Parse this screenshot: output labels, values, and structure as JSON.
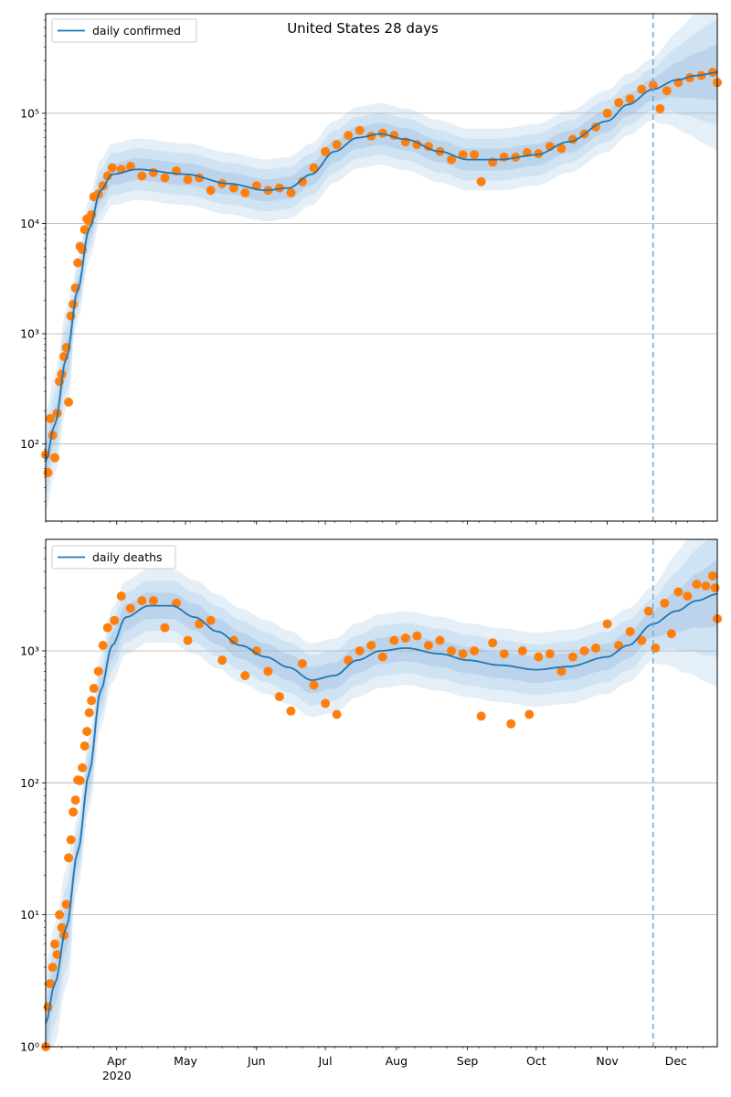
{
  "chart_data": [
    {
      "type": "line",
      "title": "United States 28 days",
      "xlabel": "",
      "ylabel": "",
      "yscale": "log",
      "ylim": [
        20,
        800000
      ],
      "xlim": [
        "2020-03-01",
        "2020-12-19"
      ],
      "x_tick_labels": [
        {
          "date": "2020-04-01",
          "label": "",
          "sublabel": ""
        },
        {
          "date": "2020-05-01",
          "label": "",
          "sublabel": ""
        },
        {
          "date": "2020-06-01",
          "label": "",
          "sublabel": ""
        },
        {
          "date": "2020-07-01",
          "label": "",
          "sublabel": ""
        },
        {
          "date": "2020-08-01",
          "label": "",
          "sublabel": ""
        },
        {
          "date": "2020-09-01",
          "label": "",
          "sublabel": ""
        },
        {
          "date": "2020-10-01",
          "label": "",
          "sublabel": ""
        },
        {
          "date": "2020-11-01",
          "label": "",
          "sublabel": ""
        },
        {
          "date": "2020-12-01",
          "label": "",
          "sublabel": ""
        }
      ],
      "y_tick_labels": [
        {
          "value": 100,
          "label": "10²"
        },
        {
          "value": 1000,
          "label": "10³"
        },
        {
          "value": 10000,
          "label": "10⁴"
        },
        {
          "value": 100000,
          "label": "10⁵"
        }
      ],
      "grid": "horizontal major",
      "legend": {
        "placement": "top-left",
        "entries": [
          "daily confirmed"
        ]
      },
      "forecast_start_line": "2020-11-21",
      "model_curve": {
        "name": "daily confirmed",
        "color": "#1f77b4",
        "knots": [
          [
            "2020-03-01",
            70
          ],
          [
            "2020-03-05",
            150
          ],
          [
            "2020-03-10",
            600
          ],
          [
            "2020-03-15",
            2500
          ],
          [
            "2020-03-20",
            9000
          ],
          [
            "2020-03-25",
            20000
          ],
          [
            "2020-03-30",
            28000
          ],
          [
            "2020-04-10",
            31000
          ],
          [
            "2020-05-01",
            28000
          ],
          [
            "2020-05-20",
            23000
          ],
          [
            "2020-06-05",
            20000
          ],
          [
            "2020-06-15",
            21000
          ],
          [
            "2020-06-25",
            28000
          ],
          [
            "2020-07-05",
            45000
          ],
          [
            "2020-07-15",
            60000
          ],
          [
            "2020-07-25",
            65000
          ],
          [
            "2020-08-05",
            58000
          ],
          [
            "2020-08-20",
            45000
          ],
          [
            "2020-09-01",
            38000
          ],
          [
            "2020-09-15",
            38000
          ],
          [
            "2020-10-01",
            42000
          ],
          [
            "2020-10-15",
            55000
          ],
          [
            "2020-11-01",
            85000
          ],
          [
            "2020-11-10",
            120000
          ],
          [
            "2020-11-21",
            165000
          ],
          [
            "2020-12-01",
            200000
          ],
          [
            "2020-12-10",
            220000
          ],
          [
            "2020-12-19",
            235000
          ]
        ]
      },
      "observed_series": {
        "name": "observed daily confirmed",
        "color": "#ff7f0e",
        "points": [
          [
            "2020-03-01",
            80
          ],
          [
            "2020-03-02",
            55
          ],
          [
            "2020-03-03",
            170
          ],
          [
            "2020-03-04",
            120
          ],
          [
            "2020-03-05",
            75
          ],
          [
            "2020-03-06",
            190
          ],
          [
            "2020-03-07",
            370
          ],
          [
            "2020-03-08",
            430
          ],
          [
            "2020-03-09",
            620
          ],
          [
            "2020-03-10",
            750
          ],
          [
            "2020-03-11",
            240
          ],
          [
            "2020-03-12",
            1450
          ],
          [
            "2020-03-13",
            1850
          ],
          [
            "2020-03-14",
            2600
          ],
          [
            "2020-03-15",
            4400
          ],
          [
            "2020-03-16",
            6200
          ],
          [
            "2020-03-17",
            5800
          ],
          [
            "2020-03-18",
            8800
          ],
          [
            "2020-03-19",
            11000
          ],
          [
            "2020-03-20",
            10500
          ],
          [
            "2020-03-21",
            12000
          ],
          [
            "2020-03-22",
            17500
          ],
          [
            "2020-03-24",
            18500
          ],
          [
            "2020-03-26",
            22000
          ],
          [
            "2020-03-28",
            27000
          ],
          [
            "2020-03-30",
            32000
          ],
          [
            "2020-04-03",
            31000
          ],
          [
            "2020-04-07",
            33000
          ],
          [
            "2020-04-12",
            27000
          ],
          [
            "2020-04-17",
            29000
          ],
          [
            "2020-04-22",
            26000
          ],
          [
            "2020-04-27",
            30000
          ],
          [
            "2020-05-02",
            25000
          ],
          [
            "2020-05-07",
            26000
          ],
          [
            "2020-05-12",
            20000
          ],
          [
            "2020-05-17",
            23000
          ],
          [
            "2020-05-22",
            21000
          ],
          [
            "2020-05-27",
            19000
          ],
          [
            "2020-06-01",
            22000
          ],
          [
            "2020-06-06",
            20000
          ],
          [
            "2020-06-11",
            21000
          ],
          [
            "2020-06-16",
            19000
          ],
          [
            "2020-06-21",
            24000
          ],
          [
            "2020-06-26",
            32000
          ],
          [
            "2020-07-01",
            45000
          ],
          [
            "2020-07-06",
            52000
          ],
          [
            "2020-07-11",
            63000
          ],
          [
            "2020-07-16",
            70000
          ],
          [
            "2020-07-21",
            62000
          ],
          [
            "2020-07-26",
            66000
          ],
          [
            "2020-07-31",
            63000
          ],
          [
            "2020-08-05",
            55000
          ],
          [
            "2020-08-10",
            52000
          ],
          [
            "2020-08-15",
            50000
          ],
          [
            "2020-08-20",
            45000
          ],
          [
            "2020-08-25",
            38000
          ],
          [
            "2020-08-30",
            42000
          ],
          [
            "2020-09-04",
            42000
          ],
          [
            "2020-09-07",
            24000
          ],
          [
            "2020-09-12",
            36000
          ],
          [
            "2020-09-17",
            40000
          ],
          [
            "2020-09-22",
            40000
          ],
          [
            "2020-09-27",
            44000
          ],
          [
            "2020-10-02",
            43000
          ],
          [
            "2020-10-07",
            50000
          ],
          [
            "2020-10-12",
            48000
          ],
          [
            "2020-10-17",
            58000
          ],
          [
            "2020-10-22",
            65000
          ],
          [
            "2020-10-27",
            75000
          ],
          [
            "2020-11-01",
            100000
          ],
          [
            "2020-11-06",
            125000
          ],
          [
            "2020-11-11",
            135000
          ],
          [
            "2020-11-16",
            165000
          ],
          [
            "2020-11-21",
            180000
          ],
          [
            "2020-11-24",
            110000
          ],
          [
            "2020-11-27",
            160000
          ],
          [
            "2020-12-02",
            190000
          ],
          [
            "2020-12-07",
            210000
          ],
          [
            "2020-12-12",
            220000
          ],
          [
            "2020-12-17",
            235000
          ],
          [
            "2020-12-19",
            190000
          ]
        ]
      }
    },
    {
      "type": "line",
      "title": "",
      "xlabel": "",
      "ylabel": "",
      "yscale": "log",
      "ylim": [
        1,
        7000
      ],
      "xlim": [
        "2020-03-01",
        "2020-12-19"
      ],
      "x_tick_labels": [
        {
          "date": "2020-04-01",
          "label": "Apr",
          "sublabel": "2020"
        },
        {
          "date": "2020-05-01",
          "label": "May",
          "sublabel": ""
        },
        {
          "date": "2020-06-01",
          "label": "Jun",
          "sublabel": ""
        },
        {
          "date": "2020-07-01",
          "label": "Jul",
          "sublabel": ""
        },
        {
          "date": "2020-08-01",
          "label": "Aug",
          "sublabel": ""
        },
        {
          "date": "2020-09-01",
          "label": "Sep",
          "sublabel": ""
        },
        {
          "date": "2020-10-01",
          "label": "Oct",
          "sublabel": ""
        },
        {
          "date": "2020-11-01",
          "label": "Nov",
          "sublabel": ""
        },
        {
          "date": "2020-12-01",
          "label": "Dec",
          "sublabel": ""
        }
      ],
      "y_tick_labels": [
        {
          "value": 1,
          "label": "10⁰"
        },
        {
          "value": 10,
          "label": "10¹"
        },
        {
          "value": 100,
          "label": "10²"
        },
        {
          "value": 1000,
          "label": "10³"
        }
      ],
      "grid": "horizontal major",
      "legend": {
        "placement": "top-left",
        "entries": [
          "daily deaths"
        ]
      },
      "forecast_start_line": "2020-11-21",
      "model_curve": {
        "name": "daily deaths",
        "color": "#1f77b4",
        "knots": [
          [
            "2020-03-01",
            1.5
          ],
          [
            "2020-03-05",
            3
          ],
          [
            "2020-03-10",
            8
          ],
          [
            "2020-03-15",
            30
          ],
          [
            "2020-03-20",
            120
          ],
          [
            "2020-03-25",
            500
          ],
          [
            "2020-03-30",
            1100
          ],
          [
            "2020-04-05",
            1800
          ],
          [
            "2020-04-15",
            2200
          ],
          [
            "2020-04-25",
            2200
          ],
          [
            "2020-05-05",
            1800
          ],
          [
            "2020-05-15",
            1400
          ],
          [
            "2020-05-25",
            1100
          ],
          [
            "2020-06-05",
            900
          ],
          [
            "2020-06-15",
            750
          ],
          [
            "2020-06-25",
            600
          ],
          [
            "2020-07-05",
            650
          ],
          [
            "2020-07-15",
            850
          ],
          [
            "2020-07-25",
            1000
          ],
          [
            "2020-08-05",
            1050
          ],
          [
            "2020-08-20",
            950
          ],
          [
            "2020-09-01",
            850
          ],
          [
            "2020-09-15",
            780
          ],
          [
            "2020-10-01",
            720
          ],
          [
            "2020-10-15",
            760
          ],
          [
            "2020-11-01",
            900
          ],
          [
            "2020-11-10",
            1100
          ],
          [
            "2020-11-21",
            1600
          ],
          [
            "2020-12-01",
            2000
          ],
          [
            "2020-12-10",
            2400
          ],
          [
            "2020-12-19",
            2700
          ]
        ]
      },
      "observed_series": {
        "name": "observed daily deaths",
        "color": "#ff7f0e",
        "points": [
          [
            "2020-03-01",
            1
          ],
          [
            "2020-03-02",
            2
          ],
          [
            "2020-03-03",
            3
          ],
          [
            "2020-03-04",
            4
          ],
          [
            "2020-03-05",
            6
          ],
          [
            "2020-03-06",
            5
          ],
          [
            "2020-03-07",
            10
          ],
          [
            "2020-03-08",
            8
          ],
          [
            "2020-03-09",
            7
          ],
          [
            "2020-03-10",
            12
          ],
          [
            "2020-03-11",
            27
          ],
          [
            "2020-03-12",
            37
          ],
          [
            "2020-03-13",
            60
          ],
          [
            "2020-03-14",
            74
          ],
          [
            "2020-03-15",
            105
          ],
          [
            "2020-03-16",
            104
          ],
          [
            "2020-03-17",
            130
          ],
          [
            "2020-03-18",
            190
          ],
          [
            "2020-03-19",
            245
          ],
          [
            "2020-03-20",
            340
          ],
          [
            "2020-03-21",
            420
          ],
          [
            "2020-03-22",
            520
          ],
          [
            "2020-03-24",
            700
          ],
          [
            "2020-03-26",
            1100
          ],
          [
            "2020-03-28",
            1500
          ],
          [
            "2020-03-31",
            1700
          ],
          [
            "2020-04-03",
            2600
          ],
          [
            "2020-04-07",
            2100
          ],
          [
            "2020-04-12",
            2400
          ],
          [
            "2020-04-17",
            2400
          ],
          [
            "2020-04-22",
            1500
          ],
          [
            "2020-04-27",
            2300
          ],
          [
            "2020-05-02",
            1200
          ],
          [
            "2020-05-07",
            1600
          ],
          [
            "2020-05-12",
            1700
          ],
          [
            "2020-05-17",
            850
          ],
          [
            "2020-05-22",
            1200
          ],
          [
            "2020-05-27",
            650
          ],
          [
            "2020-06-01",
            1000
          ],
          [
            "2020-06-06",
            700
          ],
          [
            "2020-06-11",
            450
          ],
          [
            "2020-06-16",
            350
          ],
          [
            "2020-06-21",
            800
          ],
          [
            "2020-06-26",
            550
          ],
          [
            "2020-07-01",
            400
          ],
          [
            "2020-07-06",
            330
          ],
          [
            "2020-07-11",
            850
          ],
          [
            "2020-07-16",
            1000
          ],
          [
            "2020-07-21",
            1100
          ],
          [
            "2020-07-26",
            900
          ],
          [
            "2020-07-31",
            1200
          ],
          [
            "2020-08-05",
            1250
          ],
          [
            "2020-08-10",
            1300
          ],
          [
            "2020-08-15",
            1100
          ],
          [
            "2020-08-20",
            1200
          ],
          [
            "2020-08-25",
            1000
          ],
          [
            "2020-08-30",
            950
          ],
          [
            "2020-09-04",
            1000
          ],
          [
            "2020-09-07",
            320
          ],
          [
            "2020-09-12",
            1150
          ],
          [
            "2020-09-17",
            950
          ],
          [
            "2020-09-20",
            280
          ],
          [
            "2020-09-25",
            1000
          ],
          [
            "2020-09-28",
            330
          ],
          [
            "2020-10-02",
            900
          ],
          [
            "2020-10-07",
            950
          ],
          [
            "2020-10-12",
            700
          ],
          [
            "2020-10-17",
            900
          ],
          [
            "2020-10-22",
            1000
          ],
          [
            "2020-10-27",
            1050
          ],
          [
            "2020-11-01",
            1600
          ],
          [
            "2020-11-06",
            1100
          ],
          [
            "2020-11-11",
            1400
          ],
          [
            "2020-11-16",
            1200
          ],
          [
            "2020-11-19",
            2000
          ],
          [
            "2020-11-22",
            1050
          ],
          [
            "2020-11-26",
            2300
          ],
          [
            "2020-11-29",
            1350
          ],
          [
            "2020-12-02",
            2800
          ],
          [
            "2020-12-06",
            2600
          ],
          [
            "2020-12-10",
            3200
          ],
          [
            "2020-12-14",
            3100
          ],
          [
            "2020-12-17",
            3700
          ],
          [
            "2020-12-18",
            3000
          ],
          [
            "2020-12-19",
            1750
          ]
        ]
      }
    }
  ],
  "colors": {
    "model_line": "#1f77b4",
    "observed_points": "#ff7f0e",
    "band_outer": "#e3eef8",
    "band_mid": "#cfe1f2",
    "band_inner": "#bad3ea",
    "grid": "#b0b0b0",
    "forecast_line": "#6fa8d6"
  }
}
